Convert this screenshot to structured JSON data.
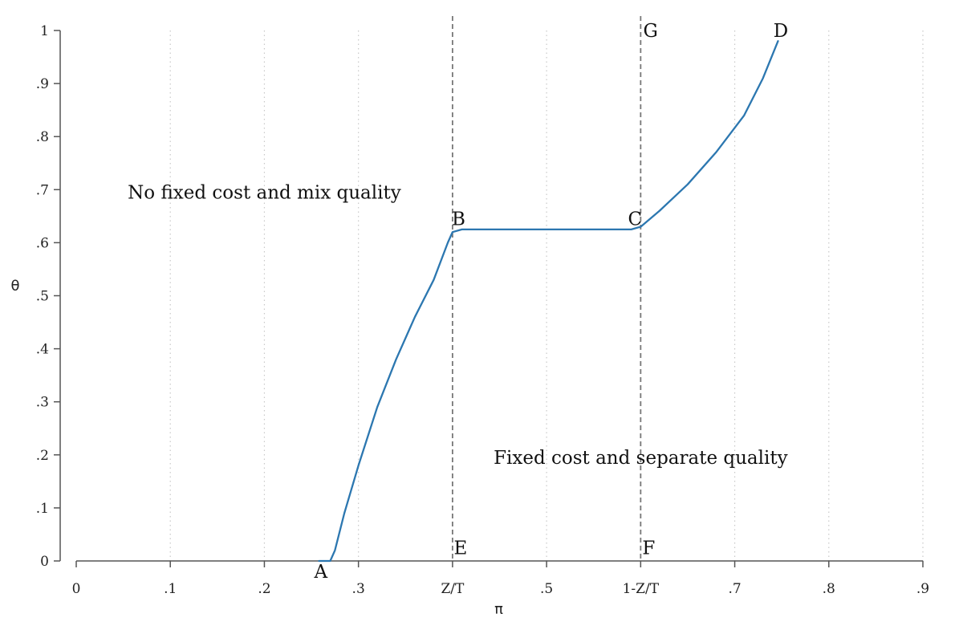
{
  "chart_data": {
    "type": "line",
    "xlabel": "π",
    "ylabel": "θ",
    "xlim": [
      0,
      0.9
    ],
    "ylim": [
      0,
      1
    ],
    "grid": "vertical-dotted",
    "x_ticks": [
      {
        "value": 0,
        "label": "0"
      },
      {
        "value": 0.1,
        "label": ".1"
      },
      {
        "value": 0.2,
        "label": ".2"
      },
      {
        "value": 0.3,
        "label": ".3"
      },
      {
        "value": 0.4,
        "label": "Z/T"
      },
      {
        "value": 0.5,
        "label": ".5"
      },
      {
        "value": 0.6,
        "label": "1-Z/T"
      },
      {
        "value": 0.7,
        "label": ".7"
      },
      {
        "value": 0.8,
        "label": ".8"
      },
      {
        "value": 0.9,
        "label": ".9"
      }
    ],
    "y_ticks": [
      {
        "value": 0,
        "label": "0"
      },
      {
        "value": 0.1,
        "label": ".1"
      },
      {
        "value": 0.2,
        "label": ".2"
      },
      {
        "value": 0.3,
        "label": ".3"
      },
      {
        "value": 0.4,
        "label": ".4"
      },
      {
        "value": 0.5,
        "label": ".5"
      },
      {
        "value": 0.6,
        "label": ".6"
      },
      {
        "value": 0.7,
        "label": ".7"
      },
      {
        "value": 0.8,
        "label": ".8"
      },
      {
        "value": 0.9,
        "label": ".9"
      },
      {
        "value": 1,
        "label": "1"
      }
    ],
    "reference_lines": [
      {
        "x": 0.4,
        "style": "dashed"
      },
      {
        "x": 0.6,
        "style": "dashed"
      }
    ],
    "series": [
      {
        "color": "#2c77b0",
        "points": [
          [
            0.258,
            0
          ],
          [
            0.27,
            0
          ],
          [
            0.275,
            0.02
          ],
          [
            0.285,
            0.09
          ],
          [
            0.3,
            0.18
          ],
          [
            0.32,
            0.29
          ],
          [
            0.34,
            0.38
          ],
          [
            0.36,
            0.46
          ],
          [
            0.38,
            0.53
          ],
          [
            0.395,
            0.6
          ],
          [
            0.4,
            0.62
          ],
          [
            0.41,
            0.625
          ],
          [
            0.45,
            0.625
          ],
          [
            0.5,
            0.625
          ],
          [
            0.55,
            0.625
          ],
          [
            0.59,
            0.625
          ],
          [
            0.6,
            0.63
          ],
          [
            0.62,
            0.66
          ],
          [
            0.65,
            0.71
          ],
          [
            0.68,
            0.77
          ],
          [
            0.71,
            0.84
          ],
          [
            0.73,
            0.91
          ],
          [
            0.746,
            0.98
          ]
        ]
      }
    ],
    "point_labels": [
      {
        "text": "A",
        "x": 0.26,
        "y": -0.02
      },
      {
        "text": "B",
        "x": 0.4065,
        "y": 0.645
      },
      {
        "text": "C",
        "x": 0.594,
        "y": 0.645
      },
      {
        "text": "D",
        "x": 0.749,
        "y": 1.0
      },
      {
        "text": "E",
        "x": 0.4085,
        "y": 0.025
      },
      {
        "text": "F",
        "x": 0.6085,
        "y": 0.025
      },
      {
        "text": "G",
        "x": 0.6105,
        "y": 1.0
      }
    ],
    "annotations": [
      {
        "text": "No fixed cost and mix quality",
        "x": 0.2,
        "y": 0.695
      },
      {
        "text": "Fixed cost and separate quality",
        "x": 0.6,
        "y": 0.195
      }
    ]
  }
}
